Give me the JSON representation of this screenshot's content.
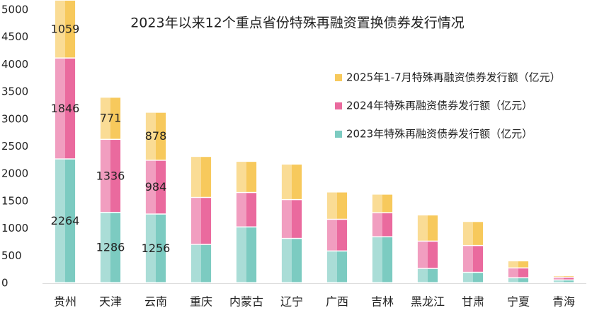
{
  "chart_data": {
    "type": "stacked_bar",
    "title": "2023年以来12个重点省份特殊再融资置换债券发行情况",
    "categories": [
      "贵州",
      "天津",
      "云南",
      "重庆",
      "内蒙古",
      "辽宁",
      "广西",
      "吉林",
      "黑龙江",
      "甘肃",
      "宁夏",
      "青海"
    ],
    "series": [
      {
        "name": "2023年特殊再融资债券发行额（亿元）",
        "color": "#7ccbc1",
        "values": [
          2264,
          1286,
          1256,
          700,
          1020,
          810,
          580,
          840,
          260,
          190,
          90,
          50
        ]
      },
      {
        "name": "2024年特殊再融资债券发行额（亿元）",
        "color": "#ea6a9e",
        "values": [
          1846,
          1336,
          984,
          860,
          630,
          710,
          580,
          440,
          500,
          490,
          180,
          50
        ]
      },
      {
        "name": "2025年1-7月特殊再融资债券发行额（亿元）",
        "color": "#f7c95c",
        "values": [
          1059,
          771,
          878,
          750,
          570,
          650,
          500,
          340,
          480,
          440,
          130,
          30
        ]
      }
    ],
    "data_labels": [
      true,
      true,
      true,
      false,
      false,
      false,
      false,
      false,
      false,
      false,
      false,
      false
    ],
    "ylim": [
      0,
      5000
    ],
    "yticks": [
      0,
      500,
      1000,
      1500,
      2000,
      2500,
      3000,
      3500,
      4000,
      4500,
      5000
    ],
    "grid": false
  }
}
